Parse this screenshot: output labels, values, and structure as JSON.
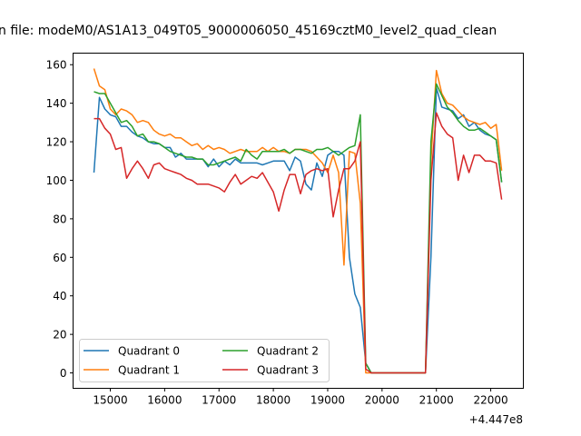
{
  "chart_data": {
    "type": "line",
    "title": "n file: modeM0/AS1A13_049T05_9000006050_45169cztM0_level2_quad_clean",
    "xlabel": "",
    "ylabel": "",
    "x_offset_label": "+4.447e8",
    "xlim": [
      14315,
      22600
    ],
    "ylim": [
      -8,
      166
    ],
    "x_ticks": [
      15000,
      16000,
      17000,
      18000,
      19000,
      20000,
      21000,
      22000
    ],
    "x_tick_labels": [
      "15000",
      "16000",
      "17000",
      "18000",
      "19000",
      "20000",
      "21000",
      "22000"
    ],
    "y_ticks": [
      0,
      20,
      40,
      60,
      80,
      100,
      120,
      140,
      160
    ],
    "y_tick_labels": [
      "0",
      "20",
      "40",
      "60",
      "80",
      "100",
      "120",
      "140",
      "160"
    ],
    "grid": false,
    "legend_position": "lower-left",
    "x_start": 14700,
    "x_step": 100,
    "series": [
      {
        "name": "Quadrant 0",
        "color": "#1f77b4",
        "values": [
          104,
          143,
          137,
          134,
          133,
          128,
          128,
          125,
          123,
          122,
          120,
          119,
          119,
          117,
          117,
          112,
          114,
          111,
          111,
          111,
          111,
          107,
          111,
          107,
          110,
          108,
          111,
          109,
          109,
          109,
          109,
          108,
          109,
          110,
          110,
          110,
          105,
          112,
          110,
          98,
          95,
          109,
          102,
          113,
          115,
          115,
          113,
          60,
          41,
          34,
          5,
          0,
          0,
          0,
          0,
          0,
          0,
          0,
          0,
          0,
          0,
          0,
          60,
          148,
          138,
          137,
          136,
          132,
          134,
          128,
          130,
          126,
          124,
          123,
          121,
          99
        ]
      },
      {
        "name": "Quadrant 1",
        "color": "#ff7f0e",
        "values": [
          158,
          149,
          147,
          137,
          134,
          137,
          136,
          134,
          130,
          131,
          130,
          126,
          124,
          123,
          124,
          122,
          122,
          120,
          118,
          119,
          116,
          118,
          116,
          117,
          116,
          114,
          115,
          116,
          115,
          115,
          115,
          117,
          115,
          117,
          115,
          115,
          114,
          116,
          116,
          116,
          115,
          112,
          109,
          104,
          113,
          104,
          56,
          115,
          114,
          88,
          0,
          0,
          0,
          0,
          0,
          0,
          0,
          0,
          0,
          0,
          0,
          0,
          110,
          157,
          145,
          140,
          139,
          136,
          133,
          131,
          130,
          129,
          130,
          127,
          129,
          105
        ]
      },
      {
        "name": "Quadrant 2",
        "color": "#2ca02c",
        "values": [
          146,
          145,
          145,
          140,
          135,
          130,
          131,
          128,
          123,
          124,
          120,
          120,
          119,
          117,
          115,
          114,
          113,
          112,
          112,
          111,
          111,
          108,
          108,
          109,
          110,
          111,
          112,
          110,
          116,
          113,
          111,
          115,
          115,
          115,
          115,
          116,
          114,
          116,
          116,
          115,
          114,
          116,
          116,
          117,
          115,
          113,
          115,
          117,
          118,
          134,
          5,
          0,
          0,
          0,
          0,
          0,
          0,
          0,
          0,
          0,
          0,
          0,
          120,
          150,
          144,
          138,
          135,
          131,
          128,
          126,
          126,
          127,
          125,
          123,
          121,
          99
        ]
      },
      {
        "name": "Quadrant 3",
        "color": "#d62728",
        "values": [
          132,
          132,
          127,
          124,
          116,
          117,
          101,
          106,
          110,
          106,
          101,
          108,
          109,
          106,
          105,
          104,
          103,
          101,
          100,
          98,
          98,
          98,
          97,
          96,
          94,
          99,
          103,
          98,
          100,
          102,
          101,
          104,
          99,
          94,
          84,
          95,
          103,
          103,
          93,
          103,
          105,
          106,
          105,
          106,
          81,
          95,
          106,
          106,
          110,
          120,
          2,
          0,
          0,
          0,
          0,
          0,
          0,
          0,
          0,
          0,
          0,
          0,
          100,
          135,
          128,
          124,
          122,
          100,
          113,
          104,
          113,
          113,
          110,
          110,
          109,
          90
        ]
      }
    ]
  }
}
